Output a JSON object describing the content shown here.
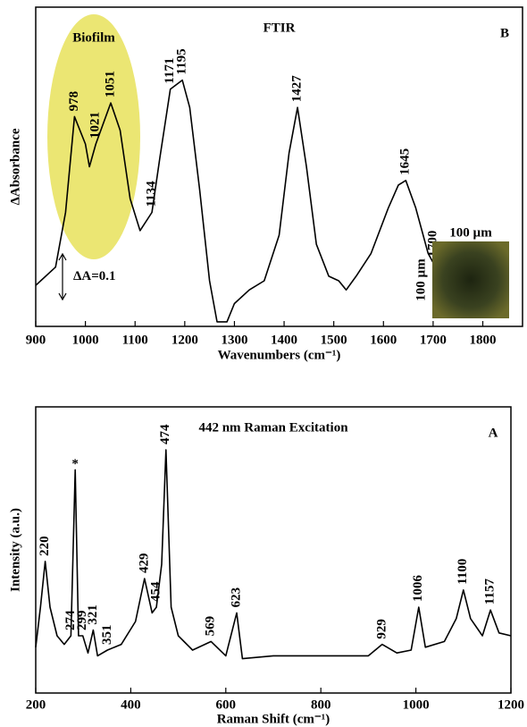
{
  "chart_data": [
    {
      "type": "line",
      "title": "FTIR",
      "panel_label": "B",
      "xlabel": "Wavenumbers (cm⁻¹)",
      "ylabel": "ΔAbsorbance",
      "xlim": [
        900,
        1880
      ],
      "ylim": [
        0,
        0.7
      ],
      "xticks": [
        900,
        1000,
        1100,
        1200,
        1300,
        1400,
        1500,
        1600,
        1700,
        1800
      ],
      "color": "#000000",
      "x": [
        900,
        940,
        960,
        978,
        1000,
        1008,
        1021,
        1051,
        1070,
        1090,
        1110,
        1134,
        1150,
        1171,
        1195,
        1210,
        1230,
        1250,
        1265,
        1285,
        1300,
        1330,
        1360,
        1390,
        1410,
        1427,
        1445,
        1465,
        1490,
        1510,
        1525,
        1545,
        1575,
        1610,
        1630,
        1645,
        1665,
        1690,
        1700,
        1730,
        1760,
        1790,
        1800
      ],
      "values": [
        0.09,
        0.13,
        0.25,
        0.46,
        0.4,
        0.35,
        0.4,
        0.49,
        0.43,
        0.28,
        0.21,
        0.25,
        0.37,
        0.52,
        0.54,
        0.48,
        0.3,
        0.1,
        0.01,
        0.01,
        0.05,
        0.08,
        0.1,
        0.2,
        0.38,
        0.48,
        0.35,
        0.18,
        0.11,
        0.1,
        0.08,
        0.11,
        0.16,
        0.26,
        0.31,
        0.32,
        0.26,
        0.16,
        0.14,
        0.06,
        0.03,
        0.02,
        0.02
      ],
      "peaks": [
        978,
        1021,
        1051,
        1134,
        1171,
        1195,
        1427,
        1645,
        1700
      ],
      "highlight": {
        "text": "Biofilm",
        "color": "#e8e25a"
      },
      "scale_bar": {
        "label": "ΔA=0.1",
        "value": 0.1
      },
      "inset": {
        "label_top": "100 µm",
        "label_side": "100 µm"
      }
    },
    {
      "type": "line",
      "title": "442 nm Raman Excitation",
      "panel_label": "A",
      "xlabel": "Raman Shift (cm⁻¹)",
      "ylabel": "Intensity (a.u.)",
      "xlim": [
        200,
        1200
      ],
      "ylim": [
        0,
        1
      ],
      "xticks": [
        200,
        400,
        600,
        800,
        1000,
        1200
      ],
      "color": "#000000",
      "x": [
        200,
        210,
        220,
        230,
        245,
        260,
        274,
        283,
        290,
        299,
        310,
        321,
        330,
        351,
        380,
        410,
        429,
        445,
        454,
        465,
        474,
        485,
        500,
        530,
        569,
        600,
        623,
        635,
        700,
        800,
        900,
        929,
        960,
        990,
        1006,
        1020,
        1060,
        1085,
        1100,
        1115,
        1140,
        1157,
        1175,
        1200
      ],
      "values": [
        0.16,
        0.3,
        0.46,
        0.3,
        0.2,
        0.17,
        0.2,
        0.78,
        0.2,
        0.2,
        0.14,
        0.22,
        0.13,
        0.15,
        0.17,
        0.25,
        0.4,
        0.28,
        0.3,
        0.45,
        0.85,
        0.3,
        0.2,
        0.15,
        0.18,
        0.13,
        0.28,
        0.12,
        0.13,
        0.13,
        0.13,
        0.17,
        0.14,
        0.15,
        0.3,
        0.16,
        0.18,
        0.26,
        0.36,
        0.26,
        0.2,
        0.29,
        0.21,
        0.2
      ],
      "peaks": [
        220,
        274,
        299,
        321,
        351,
        429,
        454,
        474,
        569,
        623,
        929,
        1006,
        1100,
        1157
      ],
      "annotations": [
        {
          "text": "*",
          "x": 283
        }
      ]
    }
  ]
}
